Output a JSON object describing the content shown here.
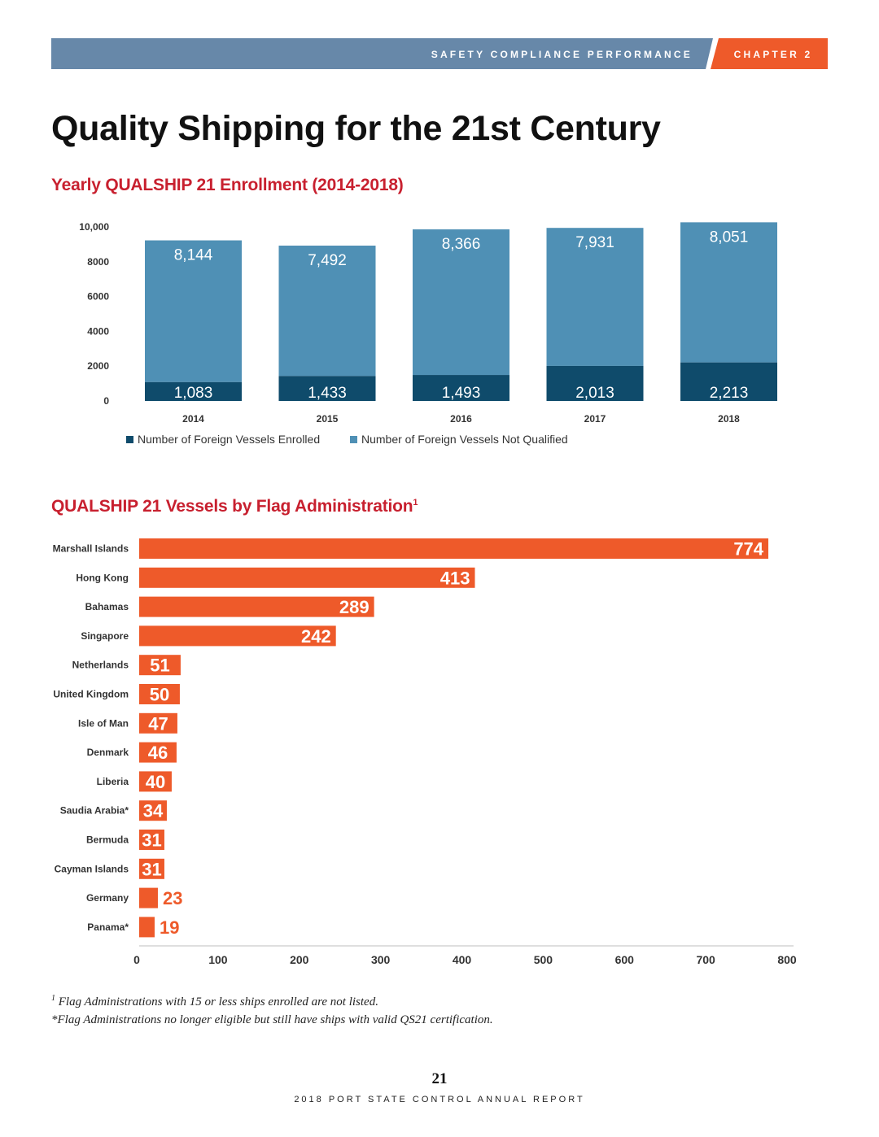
{
  "header": {
    "section_label": "SAFETY COMPLIANCE PERFORMANCE",
    "chapter_label": "CHAPTER 2",
    "bar_color": "#6788a9",
    "accent_color": "#ee5a2a"
  },
  "page_title": "Quality Shipping for the 21st Century",
  "chart_data": [
    {
      "type": "bar",
      "stacked": true,
      "title": "Yearly QUALSHIP 21 Enrollment (2014-2018)",
      "categories": [
        "2014",
        "2015",
        "2016",
        "2017",
        "2018"
      ],
      "series": [
        {
          "name": "Number of Foreign Vessels Enrolled",
          "values": [
            1083,
            1433,
            1493,
            2013,
            2213
          ],
          "labels": [
            "1,083",
            "1,433",
            "1,493",
            "2,013",
            "2,213"
          ],
          "color": "#0f4b6b"
        },
        {
          "name": "Number of Foreign Vessels Not Qualified",
          "values": [
            8144,
            7492,
            8366,
            7931,
            8051
          ],
          "labels": [
            "8,144",
            "7,492",
            "8,366",
            "7,931",
            "8,051"
          ],
          "color": "#4f90b5"
        }
      ],
      "yticks": [
        0,
        2000,
        4000,
        6000,
        8000,
        10000
      ],
      "ytick_labels": [
        "0",
        "2000",
        "4000",
        "6000",
        "8000",
        "10,000"
      ],
      "ylim": [
        0,
        10000
      ],
      "legend_position": "bottom"
    },
    {
      "type": "bar",
      "orientation": "horizontal",
      "title": "QUALSHIP 21 Vessels by Flag Administration",
      "title_superscript": "1",
      "categories": [
        "Marshall Islands",
        "Hong Kong",
        "Bahamas",
        "Singapore",
        "Netherlands",
        "United Kingdom",
        "Isle of Man",
        "Denmark",
        "Liberia",
        "Saudia Arabia*",
        "Bermuda",
        "Cayman Islands",
        "Germany",
        "Panama*"
      ],
      "values": [
        774,
        413,
        289,
        242,
        51,
        50,
        47,
        46,
        40,
        34,
        31,
        31,
        23,
        19
      ],
      "color": "#ee5a2a",
      "xticks": [
        0,
        100,
        200,
        300,
        400,
        500,
        600,
        700,
        800
      ],
      "xlim": [
        0,
        800
      ]
    }
  ],
  "footnotes": {
    "note1_marker": "1",
    "note1": "Flag Administrations with 15 or less ships enrolled are not listed.",
    "note2": "*Flag Administrations no longer eligible but still have ships with valid QS21 certification."
  },
  "footer": {
    "page_number": "21",
    "report_name": "2018 PORT STATE CONTROL ANNUAL REPORT"
  }
}
